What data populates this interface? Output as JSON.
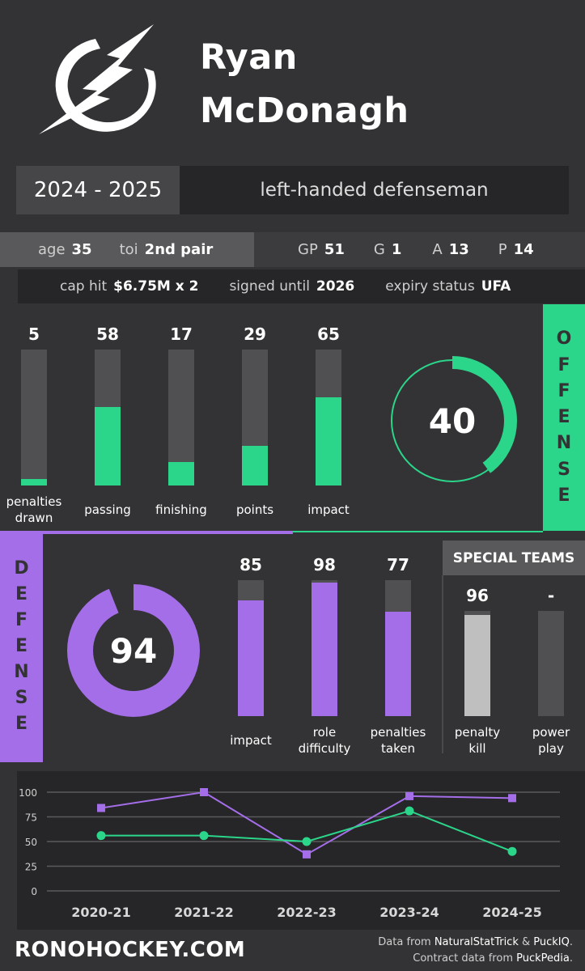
{
  "player": {
    "first_name": "Ryan",
    "last_name": "McDonagh"
  },
  "season": "2024 - 2025",
  "position": "left-handed defenseman",
  "profile": {
    "age_label": "age",
    "age": "35",
    "toi_label": "toi",
    "toi": "2nd pair",
    "gp_label": "GP",
    "gp": "51",
    "g_label": "G",
    "g": "1",
    "a_label": "A",
    "a": "13",
    "p_label": "P",
    "p": "14"
  },
  "contract": {
    "cap_hit_label": "cap hit",
    "cap_hit": "$6.75M x 2",
    "signed_label": "signed until",
    "signed": "2026",
    "expiry_label": "expiry status",
    "expiry": "UFA"
  },
  "offense": {
    "tab_letters": [
      "O",
      "F",
      "F",
      "E",
      "N",
      "S",
      "E"
    ],
    "overall": "40",
    "overall_value": 40,
    "bars": [
      {
        "value": 5,
        "value_text": "5",
        "label1": "penalties",
        "label2": "drawn"
      },
      {
        "value": 58,
        "value_text": "58",
        "label1": "passing",
        "label2": ""
      },
      {
        "value": 17,
        "value_text": "17",
        "label1": "finishing",
        "label2": ""
      },
      {
        "value": 29,
        "value_text": "29",
        "label1": "points",
        "label2": ""
      },
      {
        "value": 65,
        "value_text": "65",
        "label1": "impact",
        "label2": ""
      }
    ]
  },
  "defense": {
    "tab_letters": [
      "D",
      "E",
      "F",
      "E",
      "N",
      "S",
      "E"
    ],
    "overall": "94",
    "overall_value": 94,
    "bars": [
      {
        "value": 85,
        "value_text": "85",
        "label1": "impact",
        "label2": ""
      },
      {
        "value": 98,
        "value_text": "98",
        "label1": "role",
        "label2": "difficulty"
      },
      {
        "value": 77,
        "value_text": "77",
        "label1": "penalties",
        "label2": "taken"
      }
    ]
  },
  "special_teams": {
    "heading": "SPECIAL TEAMS",
    "bars": [
      {
        "value": 96,
        "value_text": "96",
        "label1": "penalty",
        "label2": "kill"
      },
      {
        "value": null,
        "value_text": "-",
        "label1": "power",
        "label2": "play"
      }
    ]
  },
  "chart_data": {
    "type": "line",
    "categories": [
      "2020-21",
      "2021-22",
      "2022-23",
      "2023-24",
      "2024-25"
    ],
    "series": [
      {
        "values": [
          84,
          100,
          37,
          96,
          94
        ],
        "color": "#a46ee9",
        "marker": "square"
      },
      {
        "values": [
          56,
          56,
          50,
          81,
          40
        ],
        "color": "#2bd58a",
        "marker": "circle"
      }
    ],
    "yticks": [
      "0",
      "25",
      "50",
      "75",
      "100"
    ],
    "ylim": [
      0,
      100
    ],
    "grid": true
  },
  "footer": {
    "brand": "RONOHOCKEY.COM",
    "credit_line1_pre": "Data from ",
    "credit_src1": "NaturalStatTrick",
    "credit_amp": " & ",
    "credit_src2": "PuckIQ",
    "credit_dot": ".",
    "credit_line2_pre": "Contract data from ",
    "credit_src3": "PuckPedia",
    "credit_dot2": "."
  },
  "colors": {
    "offense": "#2bd58a",
    "defense": "#a46ee9",
    "special": "#bfbfbf",
    "track": "#505052"
  },
  "icons": {
    "logo": "lightning-bolt-logo"
  }
}
